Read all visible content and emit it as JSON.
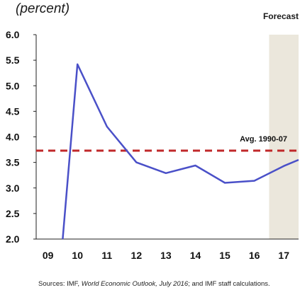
{
  "chart_data": {
    "type": "line",
    "unit_label": "(percent)",
    "forecast_label": "Forecast",
    "x_tick_labels": [
      "09",
      "10",
      "11",
      "12",
      "13",
      "14",
      "15",
      "16",
      "17"
    ],
    "y_tick_labels": [
      "6.0",
      "5.5",
      "5.0",
      "4.5",
      "4.0",
      "3.5",
      "3.0",
      "2.5",
      "2.0"
    ],
    "ylim": [
      2.0,
      6.0
    ],
    "x": [
      2009.5,
      2010,
      2011,
      2012,
      2013,
      2014,
      2015,
      2016,
      2017,
      2017.5
    ],
    "values": [
      0.0,
      5.42,
      4.2,
      3.5,
      3.29,
      3.44,
      3.1,
      3.14,
      3.43,
      3.55
    ],
    "reference_line": {
      "label": "Avg. 1990-07",
      "value": 3.73
    },
    "forecast_start": 2016.5,
    "grid": false,
    "colors": {
      "line": "#4a50c8",
      "reference": "#c0282a",
      "forecast_shade": "#ebe7dc",
      "axis": "#222222"
    }
  },
  "source_note": {
    "prefix": "Sources: IMF, ",
    "italic": "World Economic Outlook, July 2016",
    "suffix": "; and IMF staff calculations."
  }
}
